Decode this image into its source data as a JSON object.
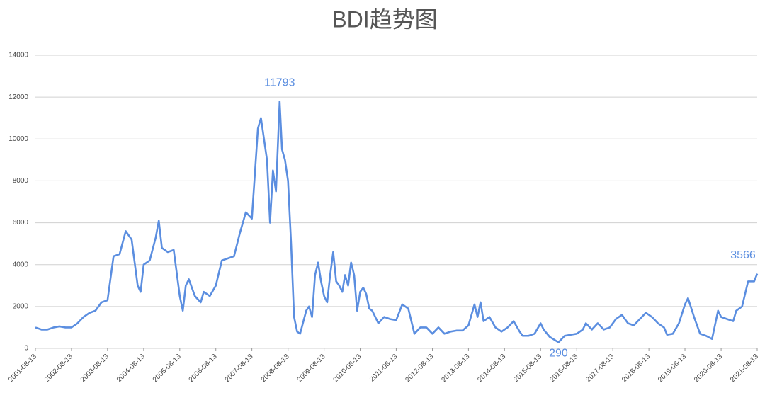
{
  "chart_data": {
    "type": "line",
    "title": "BDI趋势图",
    "x": [
      "2001-08-13",
      "2001-10-13",
      "2001-12-13",
      "2002-02-13",
      "2002-04-13",
      "2002-06-13",
      "2002-08-13",
      "2002-10-13",
      "2002-12-13",
      "2003-02-13",
      "2003-04-13",
      "2003-06-13",
      "2003-08-13",
      "2003-10-13",
      "2003-12-13",
      "2004-02-13",
      "2004-04-13",
      "2004-06-13",
      "2004-07-13",
      "2004-08-13",
      "2004-10-13",
      "2004-12-13",
      "2005-01-13",
      "2005-02-13",
      "2005-04-13",
      "2005-06-13",
      "2005-08-13",
      "2005-09-13",
      "2005-10-13",
      "2005-11-13",
      "2006-01-13",
      "2006-03-13",
      "2006-04-13",
      "2006-06-13",
      "2006-08-13",
      "2006-10-13",
      "2006-12-13",
      "2007-02-13",
      "2007-04-13",
      "2007-06-13",
      "2007-08-13",
      "2007-10-13",
      "2007-11-13",
      "2008-01-13",
      "2008-02-13",
      "2008-03-13",
      "2008-04-13",
      "2008-05-20",
      "2008-06-13",
      "2008-07-13",
      "2008-08-13",
      "2008-09-13",
      "2008-10-13",
      "2008-11-13",
      "2008-12-13",
      "2009-02-13",
      "2009-03-13",
      "2009-04-13",
      "2009-05-13",
      "2009-06-13",
      "2009-07-13",
      "2009-08-13",
      "2009-09-13",
      "2009-10-13",
      "2009-11-13",
      "2009-12-13",
      "2010-01-13",
      "2010-02-13",
      "2010-03-13",
      "2010-04-13",
      "2010-05-13",
      "2010-06-13",
      "2010-07-13",
      "2010-08-13",
      "2010-09-13",
      "2010-10-13",
      "2010-11-13",
      "2010-12-13",
      "2011-02-13",
      "2011-04-13",
      "2011-06-13",
      "2011-08-13",
      "2011-10-13",
      "2011-12-13",
      "2012-02-13",
      "2012-04-13",
      "2012-06-13",
      "2012-08-13",
      "2012-10-13",
      "2012-12-13",
      "2013-02-13",
      "2013-04-13",
      "2013-06-13",
      "2013-08-13",
      "2013-10-13",
      "2013-11-13",
      "2013-12-13",
      "2014-01-13",
      "2014-03-13",
      "2014-05-13",
      "2014-07-13",
      "2014-09-13",
      "2014-11-13",
      "2015-01-13",
      "2015-02-13",
      "2015-04-13",
      "2015-06-13",
      "2015-08-13",
      "2015-09-13",
      "2015-11-13",
      "2016-02-10",
      "2016-04-13",
      "2016-06-13",
      "2016-08-13",
      "2016-10-13",
      "2016-11-13",
      "2017-01-13",
      "2017-03-13",
      "2017-05-13",
      "2017-07-13",
      "2017-09-13",
      "2017-11-13",
      "2018-01-13",
      "2018-03-13",
      "2018-05-13",
      "2018-07-13",
      "2018-09-13",
      "2018-11-13",
      "2019-01-13",
      "2019-02-13",
      "2019-04-13",
      "2019-06-13",
      "2019-08-13",
      "2019-09-13",
      "2019-11-13",
      "2020-01-13",
      "2020-03-13",
      "2020-05-13",
      "2020-07-13",
      "2020-08-13",
      "2020-10-13",
      "2020-12-13",
      "2021-01-13",
      "2021-03-13",
      "2021-05-13",
      "2021-07-13",
      "2021-08-13"
    ],
    "values": [
      1000,
      900,
      900,
      1000,
      1050,
      1000,
      1000,
      1200,
      1500,
      1700,
      1800,
      2200,
      2300,
      4400,
      4500,
      5600,
      5200,
      3000,
      2700,
      4000,
      4200,
      5300,
      6100,
      4800,
      4600,
      4700,
      2500,
      1800,
      3000,
      3300,
      2500,
      2200,
      2700,
      2500,
      3000,
      4200,
      4300,
      4400,
      5500,
      6500,
      6200,
      10500,
      11000,
      9000,
      6000,
      8500,
      7500,
      11793,
      9500,
      9000,
      8000,
      5000,
      1500,
      800,
      700,
      1800,
      2000,
      1500,
      3500,
      4100,
      3200,
      2500,
      2200,
      3500,
      4600,
      3200,
      3000,
      2700,
      3500,
      3000,
      4100,
      3500,
      1800,
      2700,
      2900,
      2600,
      1900,
      1800,
      1200,
      1500,
      1400,
      1350,
      2100,
      1900,
      700,
      1000,
      1000,
      700,
      1000,
      700,
      800,
      850,
      850,
      1100,
      2100,
      1500,
      2200,
      1300,
      1500,
      1000,
      800,
      1000,
      1300,
      800,
      600,
      600,
      700,
      1200,
      900,
      550,
      290,
      600,
      650,
      700,
      900,
      1200,
      900,
      1200,
      900,
      1000,
      1400,
      1600,
      1200,
      1100,
      1400,
      1700,
      1500,
      1200,
      1000,
      650,
      700,
      1200,
      2100,
      2400,
      1500,
      700,
      600,
      450,
      1800,
      1500,
      1400,
      1300,
      1800,
      2000,
      3200,
      3200,
      3566
    ],
    "color": "#5b8ee0",
    "xlim": [
      "2001-08-13",
      "2021-08-13"
    ],
    "xticks": [
      "2001-08-13",
      "2002-08-13",
      "2003-08-13",
      "2004-08-13",
      "2005-08-13",
      "2006-08-13",
      "2007-08-13",
      "2008-08-13",
      "2009-08-13",
      "2010-08-13",
      "2011-08-13",
      "2012-08-13",
      "2013-08-13",
      "2014-08-13",
      "2015-08-13",
      "2016-08-13",
      "2017-08-13",
      "2018-08-13",
      "2019-08-13",
      "2020-08-13",
      "2021-08-13"
    ],
    "ylim": [
      0,
      14000
    ],
    "yticks": [
      0,
      2000,
      4000,
      6000,
      8000,
      10000,
      12000,
      14000
    ],
    "grid": true,
    "annotations": [
      {
        "x": "2008-05-20",
        "value": 11793
      },
      {
        "x": "2016-02-10",
        "value": 290
      },
      {
        "x": "2021-08-13",
        "value": 3566
      }
    ]
  }
}
